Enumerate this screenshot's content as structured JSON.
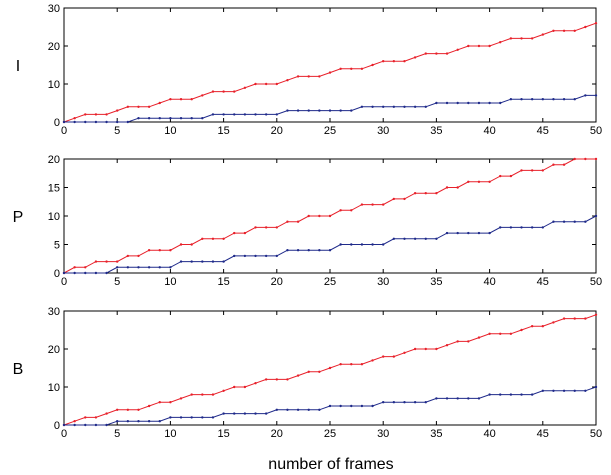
{
  "xlabel": "number of frames",
  "colors": {
    "red": "#e8202a",
    "blue": "#1f2a8a"
  },
  "chart_data": [
    {
      "type": "line",
      "ylabel": "I",
      "xlim": [
        0,
        50
      ],
      "ylim": [
        0,
        30
      ],
      "xticks": [
        0,
        5,
        10,
        15,
        20,
        25,
        30,
        35,
        40,
        45,
        50
      ],
      "yticks": [
        0,
        10,
        20,
        30
      ],
      "x": [
        0,
        1,
        2,
        3,
        4,
        5,
        6,
        7,
        8,
        9,
        10,
        11,
        12,
        13,
        14,
        15,
        16,
        17,
        18,
        19,
        20,
        21,
        22,
        23,
        24,
        25,
        26,
        27,
        28,
        29,
        30,
        31,
        32,
        33,
        34,
        35,
        36,
        37,
        38,
        39,
        40,
        41,
        42,
        43,
        44,
        45,
        46,
        47,
        48,
        49,
        50
      ],
      "series": [
        {
          "color": "#e8202a",
          "values": [
            0,
            1,
            2,
            2,
            2,
            3,
            4,
            4,
            4,
            5,
            6,
            6,
            6,
            7,
            8,
            8,
            8,
            9,
            10,
            10,
            10,
            11,
            12,
            12,
            12,
            13,
            14,
            14,
            14,
            15,
            16,
            16,
            16,
            17,
            18,
            18,
            18,
            19,
            20,
            20,
            20,
            21,
            22,
            22,
            22,
            23,
            24,
            24,
            24,
            25,
            26
          ]
        },
        {
          "color": "#1f2a8a",
          "values": [
            0,
            0,
            0,
            0,
            0,
            0,
            0,
            1,
            1,
            1,
            1,
            1,
            1,
            1,
            2,
            2,
            2,
            2,
            2,
            2,
            2,
            3,
            3,
            3,
            3,
            3,
            3,
            3,
            4,
            4,
            4,
            4,
            4,
            4,
            4,
            5,
            5,
            5,
            5,
            5,
            5,
            5,
            6,
            6,
            6,
            6,
            6,
            6,
            6,
            7,
            7
          ]
        }
      ]
    },
    {
      "type": "line",
      "ylabel": "P",
      "xlim": [
        0,
        50
      ],
      "ylim": [
        0,
        20
      ],
      "xticks": [
        0,
        5,
        10,
        15,
        20,
        25,
        30,
        35,
        40,
        45,
        50
      ],
      "yticks": [
        0,
        5,
        10,
        15,
        20
      ],
      "x": [
        0,
        1,
        2,
        3,
        4,
        5,
        6,
        7,
        8,
        9,
        10,
        11,
        12,
        13,
        14,
        15,
        16,
        17,
        18,
        19,
        20,
        21,
        22,
        23,
        24,
        25,
        26,
        27,
        28,
        29,
        30,
        31,
        32,
        33,
        34,
        35,
        36,
        37,
        38,
        39,
        40,
        41,
        42,
        43,
        44,
        45,
        46,
        47,
        48,
        49,
        50
      ],
      "series": [
        {
          "color": "#e8202a",
          "values": [
            0,
            1,
            1,
            2,
            2,
            2,
            3,
            3,
            4,
            4,
            4,
            5,
            5,
            6,
            6,
            6,
            7,
            7,
            8,
            8,
            8,
            9,
            9,
            10,
            10,
            10,
            11,
            11,
            12,
            12,
            12,
            13,
            13,
            14,
            14,
            14,
            15,
            15,
            16,
            16,
            16,
            17,
            17,
            18,
            18,
            18,
            19,
            19,
            20,
            20,
            20
          ]
        },
        {
          "color": "#1f2a8a",
          "values": [
            0,
            0,
            0,
            0,
            0,
            1,
            1,
            1,
            1,
            1,
            1,
            2,
            2,
            2,
            2,
            2,
            3,
            3,
            3,
            3,
            3,
            4,
            4,
            4,
            4,
            4,
            5,
            5,
            5,
            5,
            5,
            6,
            6,
            6,
            6,
            6,
            7,
            7,
            7,
            7,
            7,
            8,
            8,
            8,
            8,
            8,
            9,
            9,
            9,
            9,
            10
          ]
        }
      ]
    },
    {
      "type": "line",
      "ylabel": "B",
      "xlim": [
        0,
        50
      ],
      "ylim": [
        0,
        30
      ],
      "xticks": [
        0,
        5,
        10,
        15,
        20,
        25,
        30,
        35,
        40,
        45,
        50
      ],
      "yticks": [
        0,
        10,
        20,
        30
      ],
      "x": [
        0,
        1,
        2,
        3,
        4,
        5,
        6,
        7,
        8,
        9,
        10,
        11,
        12,
        13,
        14,
        15,
        16,
        17,
        18,
        19,
        20,
        21,
        22,
        23,
        24,
        25,
        26,
        27,
        28,
        29,
        30,
        31,
        32,
        33,
        34,
        35,
        36,
        37,
        38,
        39,
        40,
        41,
        42,
        43,
        44,
        45,
        46,
        47,
        48,
        49,
        50
      ],
      "series": [
        {
          "color": "#e8202a",
          "values": [
            0,
            1,
            2,
            2,
            3,
            4,
            4,
            4,
            5,
            6,
            6,
            7,
            8,
            8,
            8,
            9,
            10,
            10,
            11,
            12,
            12,
            12,
            13,
            14,
            14,
            15,
            16,
            16,
            16,
            17,
            18,
            18,
            19,
            20,
            20,
            20,
            21,
            22,
            22,
            23,
            24,
            24,
            24,
            25,
            26,
            26,
            27,
            28,
            28,
            28,
            29
          ]
        },
        {
          "color": "#1f2a8a",
          "values": [
            0,
            0,
            0,
            0,
            0,
            1,
            1,
            1,
            1,
            1,
            2,
            2,
            2,
            2,
            2,
            3,
            3,
            3,
            3,
            3,
            4,
            4,
            4,
            4,
            4,
            5,
            5,
            5,
            5,
            5,
            6,
            6,
            6,
            6,
            6,
            7,
            7,
            7,
            7,
            7,
            8,
            8,
            8,
            8,
            8,
            9,
            9,
            9,
            9,
            9,
            10
          ]
        }
      ]
    }
  ]
}
